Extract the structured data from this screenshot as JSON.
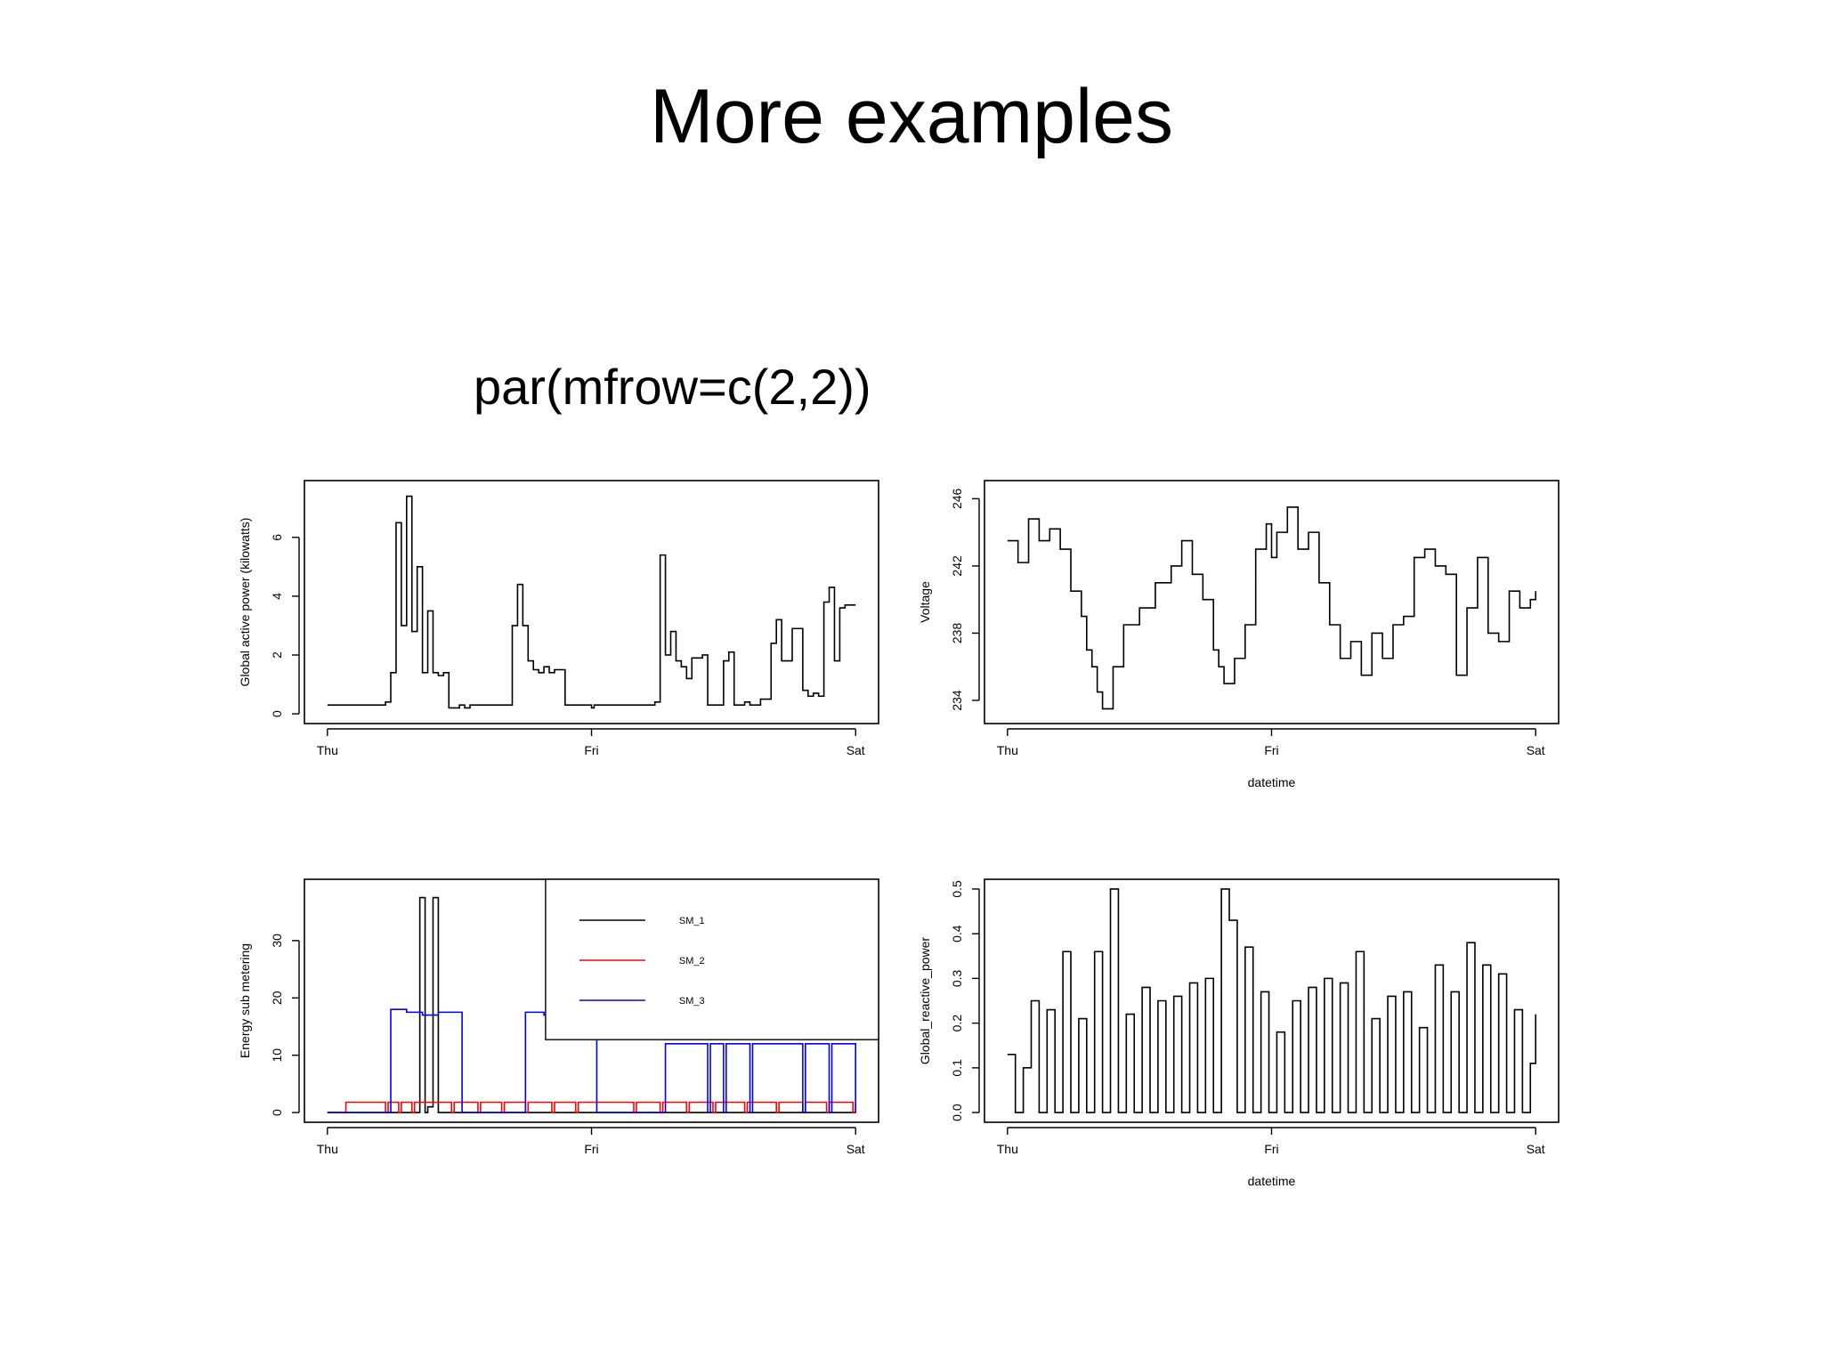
{
  "slide": {
    "title": "More examples",
    "code": "par(mfrow=c(2,2))"
  },
  "chart_data": [
    {
      "type": "line",
      "title": "",
      "xlabel": "",
      "ylabel": "Global active power (kilowatts)",
      "x_ticks": [
        "Thu",
        "Fri",
        "Sat"
      ],
      "y_ticks": [
        0,
        2,
        4,
        6
      ],
      "xlim": [
        0,
        2
      ],
      "ylim": [
        0,
        7.6
      ],
      "series": [
        {
          "color": "#000000",
          "x": [
            0.0,
            0.16,
            0.22,
            0.24,
            0.26,
            0.28,
            0.3,
            0.32,
            0.34,
            0.36,
            0.38,
            0.4,
            0.42,
            0.44,
            0.46,
            0.5,
            0.52,
            0.54,
            0.6,
            0.7,
            0.72,
            0.74,
            0.76,
            0.78,
            0.8,
            0.82,
            0.84,
            0.86,
            0.9,
            0.95,
            1.0,
            1.01,
            1.02,
            1.1,
            1.2,
            1.24,
            1.26,
            1.28,
            1.3,
            1.32,
            1.34,
            1.36,
            1.38,
            1.42,
            1.44,
            1.5,
            1.52,
            1.54,
            1.58,
            1.6,
            1.64,
            1.68,
            1.7,
            1.72,
            1.76,
            1.8,
            1.82,
            1.84,
            1.86,
            1.88,
            1.9,
            1.92,
            1.94,
            1.96,
            2.0
          ],
          "y": [
            0.3,
            0.3,
            0.4,
            1.4,
            6.5,
            3.0,
            7.4,
            2.8,
            5.0,
            1.4,
            3.5,
            1.4,
            1.3,
            1.4,
            0.2,
            0.3,
            0.2,
            0.3,
            0.3,
            3.0,
            4.4,
            3.0,
            1.8,
            1.5,
            1.4,
            1.6,
            1.4,
            1.5,
            0.3,
            0.3,
            0.2,
            0.3,
            0.3,
            0.3,
            0.3,
            0.4,
            5.4,
            2.0,
            2.8,
            1.8,
            1.6,
            1.2,
            1.9,
            2.0,
            0.3,
            1.8,
            2.1,
            0.3,
            0.4,
            0.3,
            0.5,
            2.4,
            3.2,
            1.8,
            2.9,
            0.8,
            0.6,
            0.7,
            0.6,
            3.8,
            4.3,
            1.8,
            3.6,
            3.7,
            3.7
          ]
        }
      ]
    },
    {
      "type": "line",
      "title": "",
      "xlabel": "datetime",
      "ylabel": "Voltage",
      "x_ticks": [
        "Thu",
        "Fri",
        "Sat"
      ],
      "y_ticks": [
        234,
        238,
        242,
        246
      ],
      "xlim": [
        0,
        2
      ],
      "ylim": [
        233.2,
        246.5
      ],
      "series": [
        {
          "color": "#000000",
          "x": [
            0.0,
            0.04,
            0.08,
            0.12,
            0.16,
            0.2,
            0.24,
            0.28,
            0.3,
            0.32,
            0.34,
            0.36,
            0.4,
            0.44,
            0.5,
            0.56,
            0.62,
            0.66,
            0.7,
            0.74,
            0.78,
            0.8,
            0.82,
            0.86,
            0.9,
            0.94,
            0.98,
            1.0,
            1.02,
            1.06,
            1.1,
            1.14,
            1.18,
            1.22,
            1.26,
            1.3,
            1.34,
            1.38,
            1.42,
            1.46,
            1.5,
            1.54,
            1.58,
            1.62,
            1.66,
            1.7,
            1.74,
            1.78,
            1.82,
            1.86,
            1.9,
            1.94,
            1.98,
            2.0
          ],
          "y": [
            243.5,
            242.2,
            244.8,
            243.5,
            244.2,
            243.0,
            240.5,
            239.0,
            237.0,
            236.0,
            234.5,
            233.5,
            236.0,
            238.5,
            239.5,
            241.0,
            242.0,
            243.5,
            241.5,
            240.0,
            237.0,
            236.0,
            235.0,
            236.5,
            238.5,
            243.0,
            244.5,
            242.5,
            244.0,
            245.5,
            243.0,
            244.0,
            241.0,
            238.5,
            236.5,
            237.5,
            235.5,
            238.0,
            236.5,
            238.5,
            239.0,
            242.5,
            243.0,
            242.0,
            241.5,
            235.5,
            239.5,
            242.5,
            238.0,
            237.5,
            240.5,
            239.5,
            240.0,
            240.5
          ]
        }
      ]
    },
    {
      "type": "line",
      "title": "",
      "xlabel": "",
      "ylabel": "Energy sub metering",
      "x_ticks": [
        "Thu",
        "Fri",
        "Sat"
      ],
      "y_ticks": [
        0,
        10,
        20,
        30
      ],
      "xlim": [
        0,
        2
      ],
      "ylim": [
        0,
        39
      ],
      "legend": {
        "position": "top-right",
        "entries": [
          "SM_1",
          "SM_2",
          "SM_3"
        ]
      },
      "series": [
        {
          "name": "SM_1",
          "color": "#000000",
          "x": [
            0.0,
            0.34,
            0.35,
            0.36,
            0.37,
            0.38,
            0.39,
            0.4,
            0.41,
            0.42,
            0.43,
            2.0
          ],
          "y": [
            0,
            0,
            37.5,
            37.5,
            0,
            1,
            1,
            37.5,
            37.5,
            0,
            0,
            0
          ]
        },
        {
          "name": "SM_2",
          "color": "#ff0000",
          "x": [
            0.0,
            0.06,
            0.07,
            0.22,
            0.23,
            0.27,
            0.28,
            0.32,
            0.33,
            0.47,
            0.48,
            0.57,
            0.58,
            0.66,
            0.67,
            0.75,
            0.76,
            0.85,
            0.86,
            0.94,
            0.95,
            1.16,
            1.17,
            1.26,
            1.27,
            1.36,
            1.37,
            1.46,
            1.47,
            1.58,
            1.59,
            1.7,
            1.71,
            1.8,
            1.81,
            1.89,
            1.9,
            1.99,
            2.0
          ],
          "y": [
            0,
            0,
            1.8,
            0,
            1.8,
            0,
            1.8,
            0,
            1.8,
            0,
            1.8,
            0,
            1.8,
            0,
            1.8,
            0,
            1.8,
            0,
            1.8,
            0,
            1.8,
            0,
            1.8,
            0,
            1.8,
            0,
            1.8,
            0,
            1.8,
            0,
            1.8,
            0,
            1.8,
            0,
            1.8,
            0,
            1.8,
            0,
            1.8
          ]
        },
        {
          "name": "SM_3",
          "color": "#0000ff",
          "x": [
            0.0,
            0.23,
            0.24,
            0.3,
            0.36,
            0.42,
            0.5,
            0.51,
            0.74,
            0.75,
            0.82,
            0.88,
            0.94,
            0.98,
            1.01,
            1.02,
            1.27,
            1.28,
            1.44,
            1.45,
            1.5,
            1.51,
            1.6,
            1.61,
            1.8,
            1.81,
            1.9,
            1.91,
            2.0
          ],
          "y": [
            0,
            0,
            18,
            17.5,
            17,
            17.5,
            17.5,
            0,
            0,
            17.5,
            17,
            17.5,
            18.5,
            18,
            17.5,
            0,
            0,
            12,
            0,
            12,
            0,
            12,
            0,
            12,
            0,
            12,
            0,
            12,
            0
          ]
        }
      ]
    },
    {
      "type": "line",
      "title": "",
      "xlabel": "datetime",
      "ylabel": "Global_reactive_power",
      "x_ticks": [
        "Thu",
        "Fri",
        "Sat"
      ],
      "y_ticks": [
        0.0,
        0.1,
        0.2,
        0.3,
        0.4,
        0.5
      ],
      "xlim": [
        0,
        2
      ],
      "ylim": [
        0,
        0.5
      ],
      "series": [
        {
          "color": "#000000",
          "x": [
            0.0,
            0.03,
            0.06,
            0.09,
            0.12,
            0.15,
            0.18,
            0.21,
            0.24,
            0.27,
            0.3,
            0.33,
            0.36,
            0.39,
            0.42,
            0.45,
            0.48,
            0.51,
            0.54,
            0.57,
            0.6,
            0.63,
            0.66,
            0.69,
            0.72,
            0.75,
            0.78,
            0.81,
            0.84,
            0.87,
            0.9,
            0.93,
            0.96,
            0.99,
            1.02,
            1.05,
            1.08,
            1.11,
            1.14,
            1.17,
            1.2,
            1.23,
            1.26,
            1.29,
            1.32,
            1.35,
            1.38,
            1.41,
            1.44,
            1.47,
            1.5,
            1.53,
            1.56,
            1.59,
            1.62,
            1.65,
            1.68,
            1.71,
            1.74,
            1.77,
            1.8,
            1.83,
            1.86,
            1.89,
            1.92,
            1.95,
            1.98,
            2.0
          ],
          "y": [
            0.13,
            0.0,
            0.1,
            0.25,
            0.0,
            0.23,
            0.0,
            0.36,
            0.0,
            0.21,
            0.0,
            0.36,
            0.0,
            0.5,
            0.0,
            0.22,
            0.0,
            0.28,
            0.0,
            0.25,
            0.0,
            0.26,
            0.0,
            0.29,
            0.0,
            0.3,
            0.0,
            0.5,
            0.43,
            0.0,
            0.37,
            0.0,
            0.27,
            0.0,
            0.18,
            0.0,
            0.25,
            0.0,
            0.28,
            0.0,
            0.3,
            0.0,
            0.29,
            0.0,
            0.36,
            0.0,
            0.21,
            0.0,
            0.26,
            0.0,
            0.27,
            0.0,
            0.19,
            0.0,
            0.33,
            0.0,
            0.27,
            0.0,
            0.38,
            0.0,
            0.33,
            0.0,
            0.31,
            0.0,
            0.23,
            0.0,
            0.11,
            0.22
          ]
        }
      ]
    }
  ]
}
